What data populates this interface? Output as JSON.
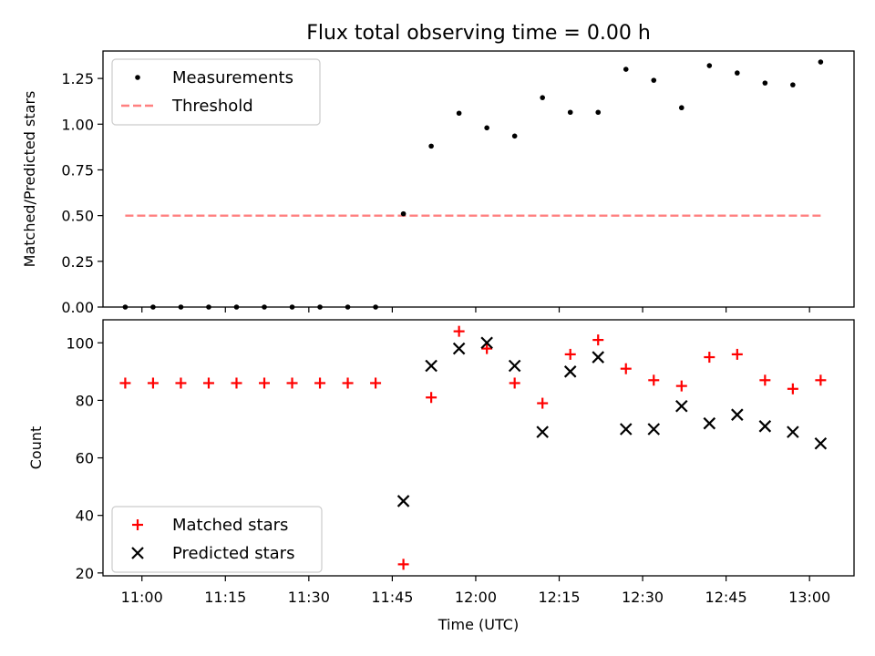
{
  "title": "Flux total observing time = 0.00 h",
  "chart_data": [
    {
      "type": "scatter",
      "panel": "top",
      "ylabel": "Matched/Predicted stars",
      "ylim": [
        0,
        1.4
      ],
      "yticks": [
        0,
        0.25,
        0.5,
        0.75,
        1.0,
        1.25
      ],
      "ytick_labels": [
        "0.00",
        "0.25",
        "0.50",
        "0.75",
        "1.00",
        "1.25"
      ],
      "legend_position": "top-left",
      "series": [
        {
          "name": "Measurements",
          "marker": "dot",
          "color": "#000000",
          "x": [
            "10:57",
            "11:02",
            "11:07",
            "11:12",
            "11:17",
            "11:22",
            "11:27",
            "11:32",
            "11:37",
            "11:42",
            "11:47",
            "11:52",
            "11:57",
            "12:02",
            "12:07",
            "12:12",
            "12:17",
            "12:22",
            "12:27",
            "12:32",
            "12:37",
            "12:42",
            "12:47",
            "12:52",
            "12:57",
            "13:02"
          ],
          "y": [
            0,
            0,
            0,
            0,
            0,
            0,
            0,
            0,
            0,
            0,
            0.51,
            0.88,
            1.06,
            0.98,
            0.935,
            1.145,
            1.065,
            1.065,
            1.3,
            1.24,
            1.09,
            1.32,
            1.28,
            1.225,
            1.215,
            1.34
          ]
        },
        {
          "name": "Threshold",
          "marker": "dashed-line",
          "color": "#ff8080",
          "x": [
            "10:57",
            "13:02"
          ],
          "y": [
            0.5,
            0.5
          ]
        }
      ]
    },
    {
      "type": "scatter",
      "panel": "bottom",
      "xlabel": "Time (UTC)",
      "ylabel": "Count",
      "ylim": [
        19,
        108
      ],
      "yticks": [
        20,
        40,
        60,
        80,
        100
      ],
      "xlim": [
        "10:53",
        "13:08"
      ],
      "xticks": [
        "11:00",
        "11:15",
        "11:30",
        "11:45",
        "12:00",
        "12:15",
        "12:30",
        "12:45",
        "13:00"
      ],
      "legend_position": "bottom-left",
      "series": [
        {
          "name": "Matched stars",
          "marker": "plus",
          "color": "#ff0000",
          "x": [
            "10:57",
            "11:02",
            "11:07",
            "11:12",
            "11:17",
            "11:22",
            "11:27",
            "11:32",
            "11:37",
            "11:42",
            "11:47",
            "11:52",
            "11:57",
            "12:02",
            "12:07",
            "12:12",
            "12:17",
            "12:22",
            "12:27",
            "12:32",
            "12:37",
            "12:42",
            "12:47",
            "12:52",
            "12:57",
            "13:02"
          ],
          "y": [
            86,
            86,
            86,
            86,
            86,
            86,
            86,
            86,
            86,
            86,
            23,
            81,
            104,
            98,
            86,
            79,
            96,
            101,
            91,
            87,
            85,
            95,
            96,
            87,
            84,
            87
          ]
        },
        {
          "name": "Predicted stars",
          "marker": "x",
          "color": "#000000",
          "x": [
            "11:47",
            "11:52",
            "11:57",
            "12:02",
            "12:07",
            "12:12",
            "12:17",
            "12:22",
            "12:27",
            "12:32",
            "12:37",
            "12:42",
            "12:47",
            "12:52",
            "12:57",
            "13:02"
          ],
          "y": [
            45,
            92,
            98,
            100,
            92,
            69,
            90,
            95,
            70,
            70,
            78,
            72,
            75,
            71,
            69,
            65
          ]
        }
      ]
    }
  ]
}
